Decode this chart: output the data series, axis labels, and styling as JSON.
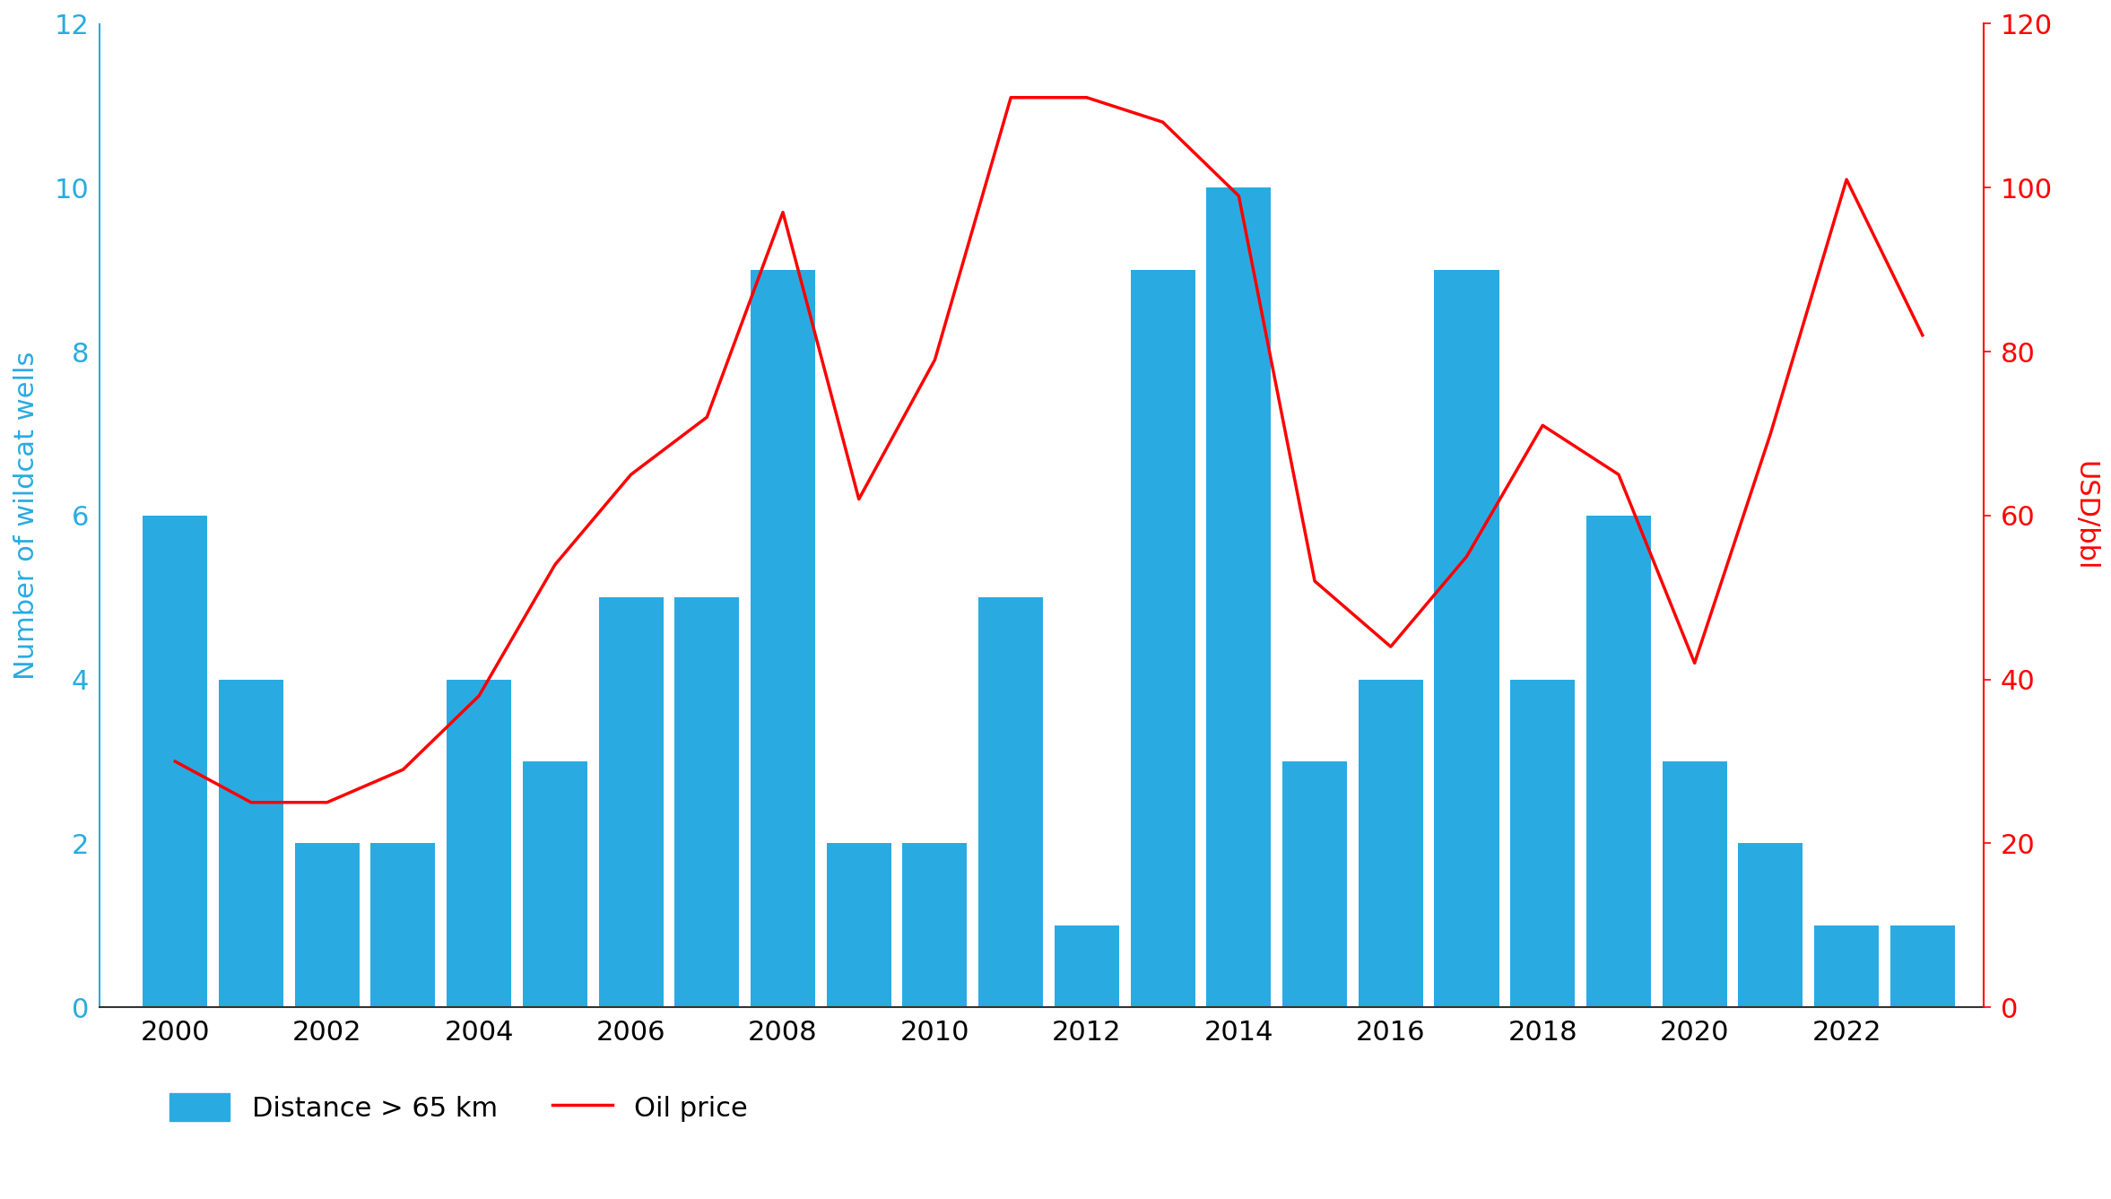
{
  "years": [
    2000,
    2001,
    2002,
    2003,
    2004,
    2005,
    2006,
    2007,
    2008,
    2009,
    2010,
    2011,
    2012,
    2013,
    2014,
    2015,
    2016,
    2017,
    2018,
    2019,
    2020,
    2021,
    2022,
    2023
  ],
  "bar_values": [
    6,
    4,
    2,
    2,
    4,
    3,
    5,
    5,
    9,
    2,
    2,
    5,
    1,
    9,
    10,
    3,
    4,
    9,
    4,
    6,
    3,
    2,
    1,
    1
  ],
  "oil_price_years": [
    2000,
    2001,
    2002,
    2003,
    2004,
    2005,
    2006,
    2007,
    2008,
    2009,
    2010,
    2011,
    2012,
    2013,
    2014,
    2015,
    2016,
    2017,
    2018,
    2019,
    2020,
    2021,
    2022,
    2023
  ],
  "oil_prices": [
    30,
    25,
    25,
    29,
    38,
    54,
    65,
    72,
    97,
    62,
    79,
    111,
    111,
    108,
    99,
    52,
    44,
    55,
    71,
    65,
    42,
    70,
    101,
    82
  ],
  "bar_color": "#29ABE2",
  "line_color": "#FF0000",
  "left_axis_color": "#29ABE2",
  "right_axis_color": "#FF0000",
  "ylim_left": [
    0,
    12
  ],
  "ylim_right": [
    0,
    120
  ],
  "yticks_left": [
    0,
    2,
    4,
    6,
    8,
    10,
    12
  ],
  "yticks_right": [
    0,
    20,
    40,
    60,
    80,
    100,
    120
  ],
  "ylabel_left": "Number of wildcat wells",
  "ylabel_right": "USD/bbl",
  "xticks": [
    2000,
    2002,
    2004,
    2006,
    2008,
    2010,
    2012,
    2014,
    2016,
    2018,
    2020,
    2022
  ],
  "legend_bar_label": "Distance > 65 km",
  "legend_line_label": "Oil price",
  "background_color": "#FFFFFF",
  "spine_color_left": "#29ABE2",
  "spine_color_right": "#FF0000",
  "spine_color_bottom": "#333333",
  "bar_width": 0.85,
  "line_width": 2.5,
  "fontsize": 22,
  "xlim": [
    1999.0,
    2023.8
  ]
}
